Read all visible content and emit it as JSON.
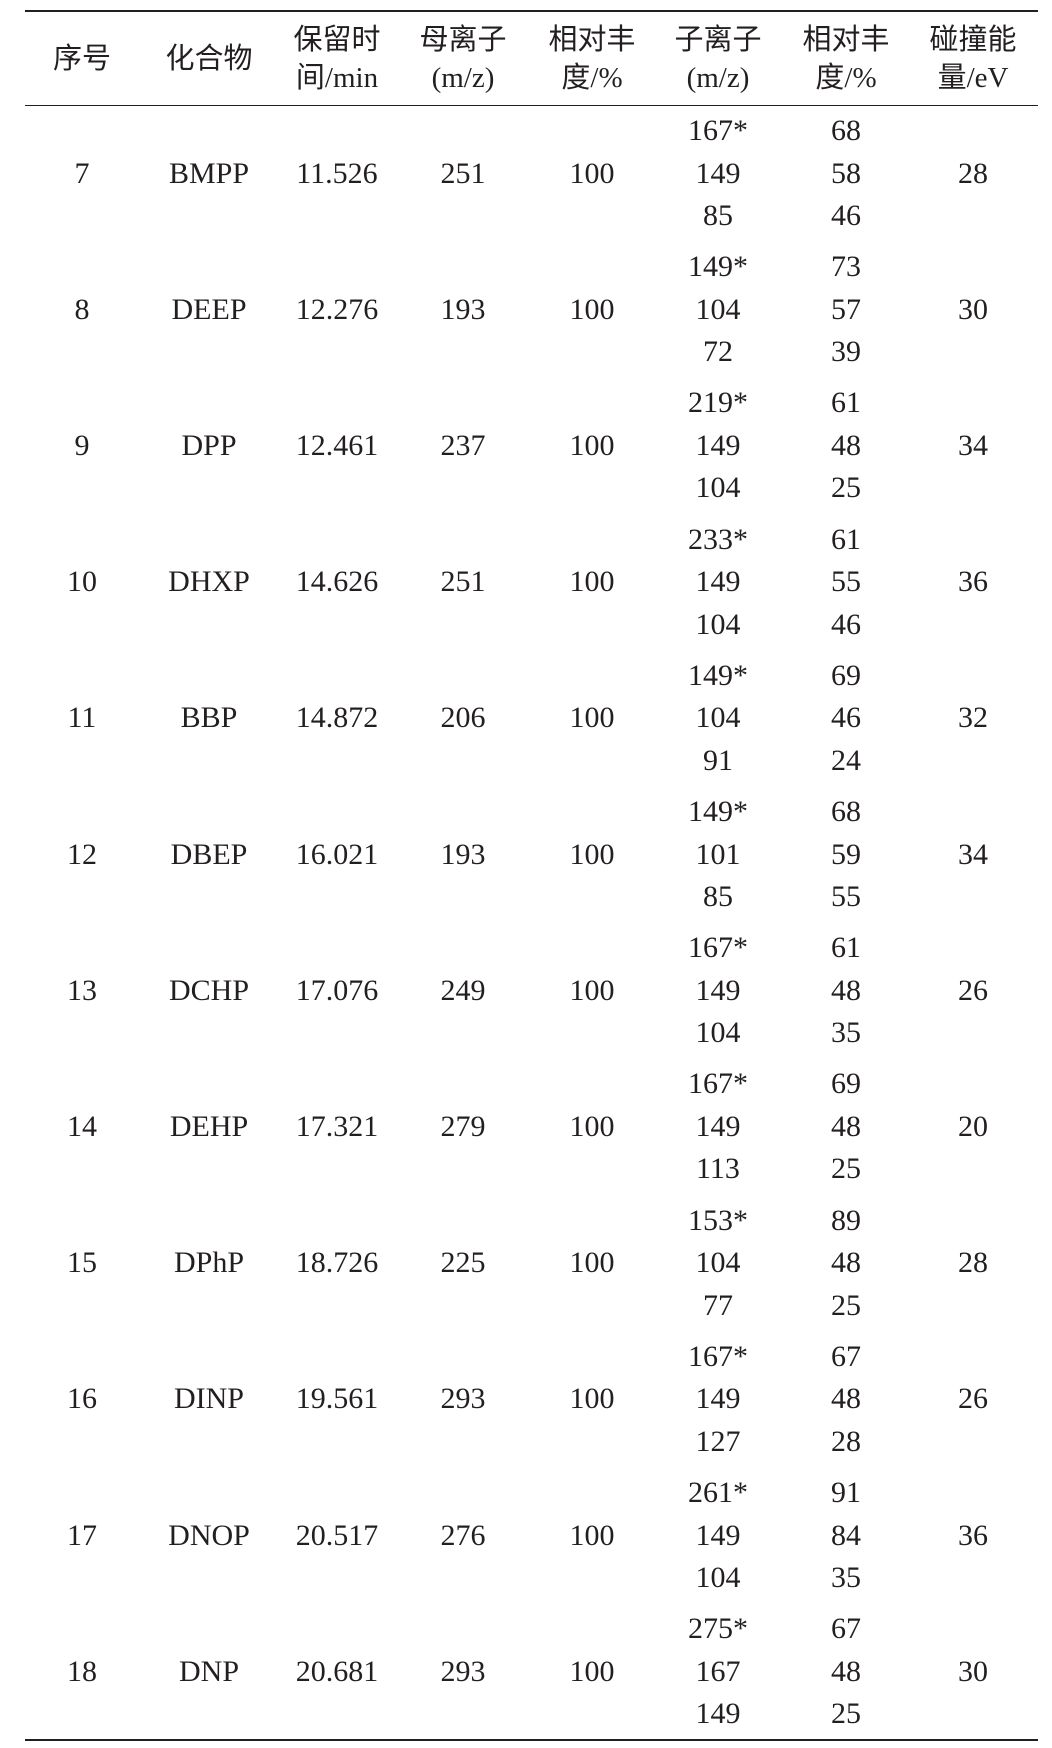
{
  "headers": [
    [
      "序号"
    ],
    [
      "化合物"
    ],
    [
      "保留时",
      "间/min"
    ],
    [
      "母离子",
      "(m/z)"
    ],
    [
      "相对丰",
      "度/%"
    ],
    [
      "子离子",
      "(m/z)"
    ],
    [
      "相对丰",
      "度/%"
    ],
    [
      "碰撞能",
      "量/eV"
    ]
  ],
  "rows": [
    {
      "no": "7",
      "compound": "BMPP",
      "rt": "11.526",
      "parent": "251",
      "parent_abund": "100",
      "daughters": [
        "167*",
        "149",
        "85"
      ],
      "daughter_abund": [
        "68",
        "58",
        "46"
      ],
      "ce": "28"
    },
    {
      "no": "8",
      "compound": "DEEP",
      "rt": "12.276",
      "parent": "193",
      "parent_abund": "100",
      "daughters": [
        "149*",
        "104",
        "72"
      ],
      "daughter_abund": [
        "73",
        "57",
        "39"
      ],
      "ce": "30"
    },
    {
      "no": "9",
      "compound": "DPP",
      "rt": "12.461",
      "parent": "237",
      "parent_abund": "100",
      "daughters": [
        "219*",
        "149",
        "104"
      ],
      "daughter_abund": [
        "61",
        "48",
        "25"
      ],
      "ce": "34"
    },
    {
      "no": "10",
      "compound": "DHXP",
      "rt": "14.626",
      "parent": "251",
      "parent_abund": "100",
      "daughters": [
        "233*",
        "149",
        "104"
      ],
      "daughter_abund": [
        "61",
        "55",
        "46"
      ],
      "ce": "36"
    },
    {
      "no": "11",
      "compound": "BBP",
      "rt": "14.872",
      "parent": "206",
      "parent_abund": "100",
      "daughters": [
        "149*",
        "104",
        "91"
      ],
      "daughter_abund": [
        "69",
        "46",
        "24"
      ],
      "ce": "32"
    },
    {
      "no": "12",
      "compound": "DBEP",
      "rt": "16.021",
      "parent": "193",
      "parent_abund": "100",
      "daughters": [
        "149*",
        "101",
        "85"
      ],
      "daughter_abund": [
        "68",
        "59",
        "55"
      ],
      "ce": "34"
    },
    {
      "no": "13",
      "compound": "DCHP",
      "rt": "17.076",
      "parent": "249",
      "parent_abund": "100",
      "daughters": [
        "167*",
        "149",
        "104"
      ],
      "daughter_abund": [
        "61",
        "48",
        "35"
      ],
      "ce": "26"
    },
    {
      "no": "14",
      "compound": "DEHP",
      "rt": "17.321",
      "parent": "279",
      "parent_abund": "100",
      "daughters": [
        "167*",
        "149",
        "113"
      ],
      "daughter_abund": [
        "69",
        "48",
        "25"
      ],
      "ce": "20"
    },
    {
      "no": "15",
      "compound": "DPhP",
      "rt": "18.726",
      "parent": "225",
      "parent_abund": "100",
      "daughters": [
        "153*",
        "104",
        "77"
      ],
      "daughter_abund": [
        "89",
        "48",
        "25"
      ],
      "ce": "28"
    },
    {
      "no": "16",
      "compound": "DINP",
      "rt": "19.561",
      "parent": "293",
      "parent_abund": "100",
      "daughters": [
        "167*",
        "149",
        "127"
      ],
      "daughter_abund": [
        "67",
        "48",
        "28"
      ],
      "ce": "26"
    },
    {
      "no": "17",
      "compound": "DNOP",
      "rt": "20.517",
      "parent": "276",
      "parent_abund": "100",
      "daughters": [
        "261*",
        "149",
        "104"
      ],
      "daughter_abund": [
        "91",
        "84",
        "35"
      ],
      "ce": "36"
    },
    {
      "no": "18",
      "compound": "DNP",
      "rt": "20.681",
      "parent": "293",
      "parent_abund": "100",
      "daughters": [
        "275*",
        "167",
        "149"
      ],
      "daughter_abund": [
        "67",
        "48",
        "25"
      ],
      "ce": "30"
    }
  ]
}
